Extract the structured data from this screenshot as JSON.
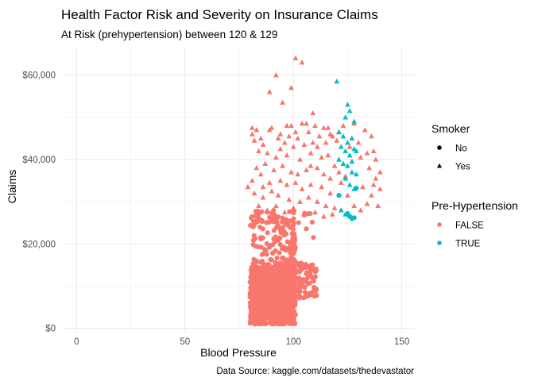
{
  "chart_data": {
    "type": "scatter",
    "title": "Health Factor Risk and Severity on Insurance Claims",
    "subtitle": "At Risk (prehypertension) between 120 & 129",
    "xlabel": "Blood Pressure",
    "ylabel": "Claims",
    "caption": "Data Source: kaggle.com/datasets/thedevastator",
    "xlim": [
      -6,
      156
    ],
    "ylim": [
      -1000,
      66500
    ],
    "x_ticks": [
      0,
      50,
      100,
      150
    ],
    "y_ticks": [
      0,
      20000,
      40000,
      60000
    ],
    "y_tick_labels": [
      "$0",
      "$20,000",
      "$40,000",
      "$60,000"
    ],
    "x_tick_labels": [
      "0",
      "50",
      "100",
      "150"
    ],
    "grid": true,
    "colors": {
      "false": "#F8766D",
      "true": "#00BFC4",
      "grid": "#EBEBEB"
    },
    "legends": [
      {
        "title": "Smoker",
        "type": "shape",
        "items": [
          {
            "label": "No",
            "shape": "circle"
          },
          {
            "label": "Yes",
            "shape": "triangle"
          }
        ]
      },
      {
        "title": "Pre-Hypertension",
        "type": "color",
        "items": [
          {
            "label": "FALSE",
            "color": "#F8766D"
          },
          {
            "label": "TRUE",
            "color": "#00BFC4"
          }
        ]
      }
    ],
    "series": [
      {
        "smoker": "Yes",
        "prehypertension": "FALSE",
        "points": [
          [
            101,
            64000
          ],
          [
            104,
            63000
          ],
          [
            92,
            60000
          ],
          [
            99,
            57000
          ],
          [
            89,
            56000
          ],
          [
            95,
            53500
          ],
          [
            109,
            51000
          ],
          [
            81,
            47500
          ],
          [
            89,
            47000
          ],
          [
            94,
            46000
          ],
          [
            104,
            48500
          ],
          [
            106,
            48500
          ],
          [
            110,
            48000
          ],
          [
            114,
            47500
          ],
          [
            101,
            46500
          ],
          [
            107,
            46500
          ],
          [
            117,
            46000
          ],
          [
            93,
            45000
          ],
          [
            98,
            45500
          ],
          [
            102,
            45000
          ],
          [
            112,
            45500
          ],
          [
            118,
            45500
          ],
          [
            82,
            44500
          ],
          [
            86,
            43500
          ],
          [
            96,
            44000
          ],
          [
            100,
            43000
          ],
          [
            105,
            43500
          ],
          [
            109,
            44000
          ],
          [
            115,
            44000
          ],
          [
            120,
            44500
          ],
          [
            123,
            48000
          ],
          [
            128,
            48500
          ],
          [
            126,
            43000
          ],
          [
            133,
            47000
          ],
          [
            136,
            45500
          ],
          [
            134,
            41500
          ],
          [
            138,
            40000
          ],
          [
            131,
            40500
          ],
          [
            135,
            38000
          ],
          [
            140,
            37000
          ],
          [
            138,
            35500
          ],
          [
            84,
            42000
          ],
          [
            88,
            41500
          ],
          [
            92,
            40500
          ],
          [
            97,
            41000
          ],
          [
            103,
            40000
          ],
          [
            108,
            41500
          ],
          [
            113,
            40500
          ],
          [
            116,
            41000
          ],
          [
            119,
            38500
          ],
          [
            83,
            38000
          ],
          [
            87,
            39000
          ],
          [
            91,
            37500
          ],
          [
            95,
            38500
          ],
          [
            99,
            37000
          ],
          [
            102,
            36500
          ],
          [
            106,
            37500
          ],
          [
            111,
            38000
          ],
          [
            114,
            36500
          ],
          [
            121,
            37000
          ],
          [
            81,
            35000
          ],
          [
            85,
            36500
          ],
          [
            89,
            34500
          ],
          [
            94,
            35000
          ],
          [
            97,
            34000
          ],
          [
            101,
            34500
          ],
          [
            104,
            33000
          ],
          [
            108,
            34000
          ],
          [
            113,
            33500
          ],
          [
            117,
            32000
          ],
          [
            82,
            32000
          ],
          [
            86,
            31000
          ],
          [
            90,
            32500
          ],
          [
            93,
            31500
          ],
          [
            98,
            30500
          ],
          [
            103,
            30000
          ],
          [
            107,
            31000
          ],
          [
            111,
            30000
          ],
          [
            115,
            29000
          ],
          [
            119,
            28500
          ],
          [
            134,
            29500
          ],
          [
            139,
            29000
          ],
          [
            136,
            31500
          ],
          [
            131,
            28000
          ],
          [
            84,
            29000
          ],
          [
            88,
            28000
          ],
          [
            92,
            29000
          ],
          [
            96,
            27500
          ],
          [
            100,
            28500
          ],
          [
            105,
            27000
          ],
          [
            110,
            27500
          ],
          [
            114,
            26500
          ],
          [
            118,
            27000
          ],
          [
            81,
            46000
          ],
          [
            85,
            45000
          ],
          [
            99,
            48000
          ],
          [
            121,
            46500
          ],
          [
            130,
            44000
          ],
          [
            137,
            42000
          ],
          [
            125,
            31500
          ],
          [
            128,
            29000
          ],
          [
            132,
            33500
          ],
          [
            137,
            34000
          ],
          [
            140,
            33000
          ],
          [
            90,
            47500
          ],
          [
            97,
            48000
          ],
          [
            111,
            43000
          ],
          [
            116,
            47500
          ],
          [
            108,
            38500
          ],
          [
            94,
            42500
          ],
          [
            86,
            33500
          ],
          [
            122,
            34500
          ],
          [
            117,
            35500
          ],
          [
            124,
            36000
          ],
          [
            79,
            33500
          ],
          [
            83,
            47000
          ]
        ]
      },
      {
        "smoker": "Yes",
        "prehypertension": "TRUE",
        "points": [
          [
            120,
            58500
          ],
          [
            125,
            53000
          ],
          [
            126,
            51500
          ],
          [
            124,
            50000
          ],
          [
            128,
            49000
          ],
          [
            121,
            46500
          ],
          [
            123,
            45500
          ],
          [
            127,
            45000
          ],
          [
            122,
            43000
          ],
          [
            124,
            42000
          ],
          [
            126,
            41000
          ],
          [
            128,
            42500
          ],
          [
            121,
            40000
          ],
          [
            123,
            39000
          ],
          [
            125,
            38500
          ],
          [
            127,
            37000
          ],
          [
            129,
            36500
          ],
          [
            124,
            35500
          ],
          [
            126,
            34000
          ],
          [
            128,
            33000
          ],
          [
            122,
            28000
          ],
          [
            124,
            27000
          ],
          [
            127,
            39500
          ],
          [
            129,
            42000
          ],
          [
            125,
            44000
          ]
        ]
      },
      {
        "smoker": "No",
        "prehypertension": "TRUE",
        "points": [
          [
            121,
            31500
          ],
          [
            126,
            26500
          ],
          [
            127,
            26000
          ],
          [
            128,
            26200
          ],
          [
            125,
            27200
          ],
          [
            129,
            33200
          ]
        ]
      },
      {
        "smoker": "No",
        "prehypertension": "FALSE",
        "regions": [
          {
            "x": [
              80,
              101
            ],
            "y": [
              1000,
              14500
            ],
            "count": 850
          },
          {
            "x": [
              80,
              111
            ],
            "y": [
              7000,
              15500
            ],
            "count": 260
          },
          {
            "x": [
              80,
              101
            ],
            "y": [
              14500,
              28000
            ],
            "count": 140
          },
          {
            "x": [
              80,
              111
            ],
            "y": [
              20000,
              28000
            ],
            "count": 20
          }
        ]
      }
    ]
  }
}
